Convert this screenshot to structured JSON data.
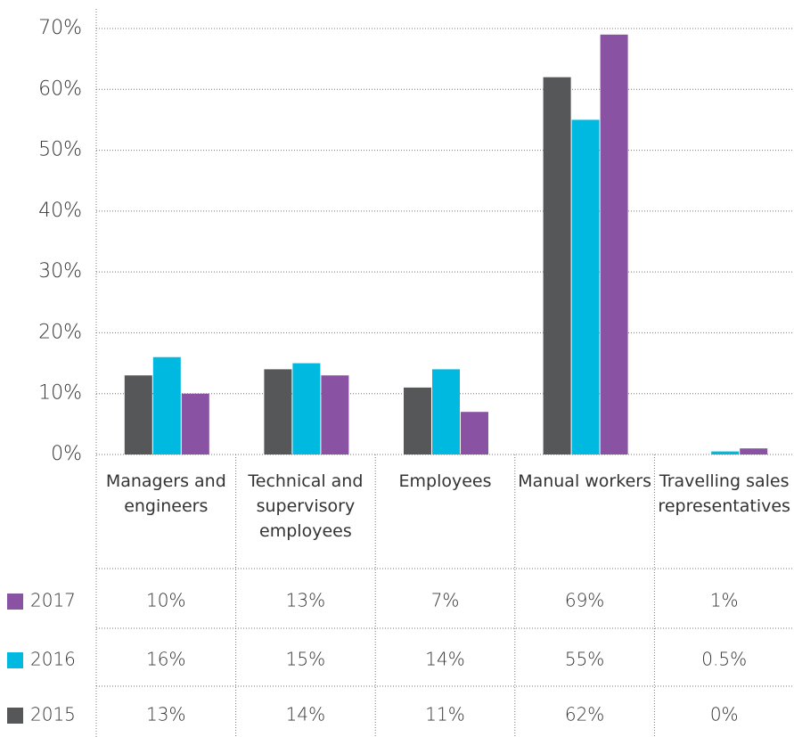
{
  "chart_data": {
    "type": "bar",
    "categories": [
      "Managers and engineers",
      "Technical and supervisory employees",
      "Employees",
      "Manual workers",
      "Travelling sales representatives"
    ],
    "series": [
      {
        "name": "2015",
        "color": "#555759",
        "values": [
          13,
          14,
          11,
          62,
          0
        ],
        "value_labels": [
          "13%",
          "14%",
          "11%",
          "62%",
          "0%"
        ]
      },
      {
        "name": "2016",
        "color": "#00b9e0",
        "values": [
          16,
          15,
          14,
          55,
          0.5
        ],
        "value_labels": [
          "16%",
          "15%",
          "14%",
          "55%",
          "0.5%"
        ]
      },
      {
        "name": "2017",
        "color": "#8a52a3",
        "values": [
          10,
          13,
          7,
          69,
          1
        ],
        "value_labels": [
          "10%",
          "13%",
          "7%",
          "69%",
          "1%"
        ]
      }
    ],
    "ylim": [
      0,
      70
    ],
    "yticks": [
      {
        "value": 0,
        "label": "0%"
      },
      {
        "value": 10,
        "label": "10%"
      },
      {
        "value": 20,
        "label": "20%"
      },
      {
        "value": 30,
        "label": "30%"
      },
      {
        "value": 40,
        "label": "40%"
      },
      {
        "value": 50,
        "label": "50%"
      },
      {
        "value": 60,
        "label": "60%"
      },
      {
        "value": 70,
        "label": "70%"
      }
    ],
    "grid": true
  }
}
